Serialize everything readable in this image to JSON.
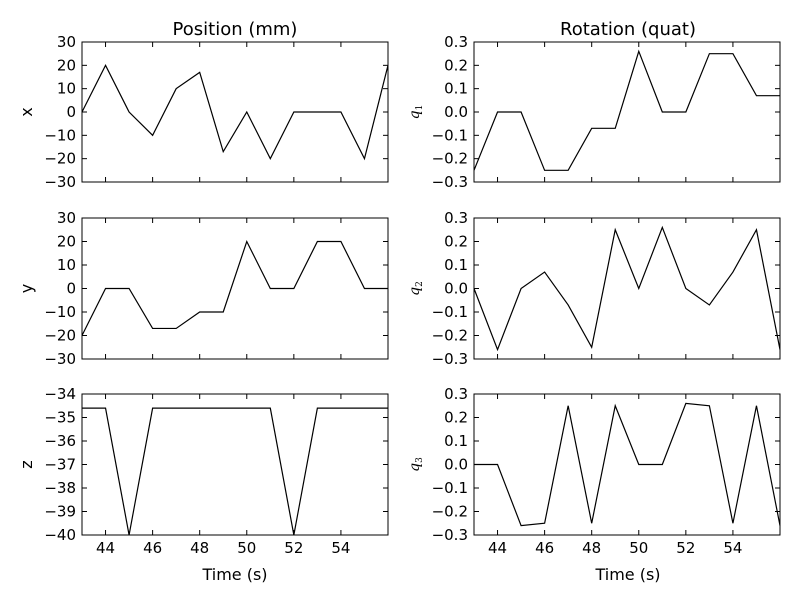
{
  "figure": {
    "column_titles": [
      "Position (mm)",
      "Rotation (quat)"
    ],
    "xlabel": "Time (s)"
  },
  "chart_data": [
    {
      "type": "line",
      "ylabel": "x",
      "xlim": [
        43,
        56
      ],
      "ylim": [
        -30,
        30
      ],
      "xticks": [
        44,
        46,
        48,
        50,
        52,
        54
      ],
      "xticklabels": [],
      "yticks": [
        -30,
        -20,
        -10,
        0,
        10,
        20,
        30
      ],
      "yticklabels": [
        "−30",
        "−20",
        "−10",
        "0",
        "10",
        "20",
        "30"
      ],
      "x": [
        43,
        44,
        45,
        46,
        47,
        48,
        49,
        50,
        51,
        52,
        53,
        54,
        55,
        56
      ],
      "y": [
        0,
        20,
        0,
        -10,
        10,
        17,
        -17,
        0,
        -20,
        0,
        0,
        0,
        -20,
        20
      ]
    },
    {
      "type": "line",
      "ylabel": "q",
      "ylabel_sub": "1",
      "xlim": [
        43,
        56
      ],
      "ylim": [
        -0.3,
        0.3
      ],
      "xticks": [
        44,
        46,
        48,
        50,
        52,
        54
      ],
      "xticklabels": [],
      "yticks": [
        -0.3,
        -0.2,
        -0.1,
        0,
        0.1,
        0.2,
        0.3
      ],
      "yticklabels": [
        "−0.3",
        "−0.2",
        "−0.1",
        "0.0",
        "0.1",
        "0.2",
        "0.3"
      ],
      "x": [
        43,
        44,
        45,
        46,
        47,
        48,
        49,
        50,
        51,
        52,
        53,
        54,
        55,
        56
      ],
      "y": [
        -0.25,
        0,
        0,
        -0.25,
        -0.25,
        -0.07,
        -0.07,
        0.26,
        0,
        0,
        0.25,
        0.25,
        0.07,
        0.07
      ]
    },
    {
      "type": "line",
      "ylabel": "y",
      "xlim": [
        43,
        56
      ],
      "ylim": [
        -30,
        30
      ],
      "xticks": [
        44,
        46,
        48,
        50,
        52,
        54
      ],
      "xticklabels": [],
      "yticks": [
        -30,
        -20,
        -10,
        0,
        10,
        20,
        30
      ],
      "yticklabels": [
        "−30",
        "−20",
        "−10",
        "0",
        "10",
        "20",
        "30"
      ],
      "x": [
        43,
        44,
        45,
        46,
        47,
        48,
        49,
        50,
        51,
        52,
        53,
        54,
        55,
        56
      ],
      "y": [
        -20,
        0,
        0,
        -17,
        -17,
        -10,
        -10,
        20,
        0,
        0,
        20,
        20,
        0,
        0
      ]
    },
    {
      "type": "line",
      "ylabel": "q",
      "ylabel_sub": "2",
      "xlim": [
        43,
        56
      ],
      "ylim": [
        -0.3,
        0.3
      ],
      "xticks": [
        44,
        46,
        48,
        50,
        52,
        54
      ],
      "xticklabels": [],
      "yticks": [
        -0.3,
        -0.2,
        -0.1,
        0,
        0.1,
        0.2,
        0.3
      ],
      "yticklabels": [
        "−0.3",
        "−0.2",
        "−0.1",
        "0.0",
        "0.1",
        "0.2",
        "0.3"
      ],
      "x": [
        43,
        44,
        45,
        46,
        47,
        48,
        49,
        50,
        51,
        52,
        53,
        54,
        55,
        56
      ],
      "y": [
        0,
        -0.26,
        0,
        0.07,
        -0.07,
        -0.25,
        0.25,
        0,
        0.26,
        0,
        -0.07,
        0.07,
        0.25,
        -0.26
      ]
    },
    {
      "type": "line",
      "ylabel": "z",
      "xlim": [
        43,
        56
      ],
      "ylim": [
        -40,
        -34
      ],
      "xticks": [
        44,
        46,
        48,
        50,
        52,
        54
      ],
      "xticklabels": [
        "44",
        "46",
        "48",
        "50",
        "52",
        "54"
      ],
      "yticks": [
        -40,
        -39,
        -38,
        -37,
        -36,
        -35,
        -34
      ],
      "yticklabels": [
        "−40",
        "−39",
        "−38",
        "−37",
        "−36",
        "−35",
        "−34"
      ],
      "x": [
        43,
        44,
        45,
        46,
        47,
        48,
        49,
        50,
        51,
        52,
        53,
        54,
        55,
        56
      ],
      "y": [
        -34.6,
        -34.6,
        -40,
        -34.6,
        -34.6,
        -34.6,
        -34.6,
        -34.6,
        -34.6,
        -40,
        -34.6,
        -34.6,
        -34.6,
        -34.6
      ]
    },
    {
      "type": "line",
      "ylabel": "q",
      "ylabel_sub": "3",
      "xlim": [
        43,
        56
      ],
      "ylim": [
        -0.3,
        0.3
      ],
      "xticks": [
        44,
        46,
        48,
        50,
        52,
        54
      ],
      "xticklabels": [
        "44",
        "46",
        "48",
        "50",
        "52",
        "54"
      ],
      "yticks": [
        -0.3,
        -0.2,
        -0.1,
        0,
        0.1,
        0.2,
        0.3
      ],
      "yticklabels": [
        "−0.3",
        "−0.2",
        "−0.1",
        "0.0",
        "0.1",
        "0.2",
        "0.3"
      ],
      "x": [
        43,
        44,
        45,
        46,
        47,
        48,
        49,
        50,
        51,
        52,
        53,
        54,
        55,
        56
      ],
      "y": [
        0,
        0,
        -0.26,
        -0.25,
        0.25,
        -0.25,
        0.25,
        0,
        0,
        0.26,
        0.25,
        -0.25,
        0.25,
        -0.26
      ]
    }
  ]
}
